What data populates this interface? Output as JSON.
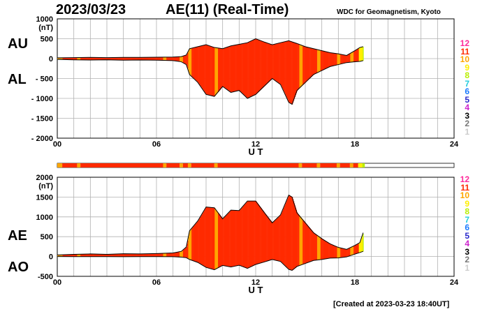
{
  "header": {
    "date": "2023/03/23",
    "title": "AE(11) (Real-Time)",
    "source": "WDC for Geomagnetism, Kyoto"
  },
  "footer": {
    "created": "[Created at 2023-03-23 18:40UT]"
  },
  "colors": {
    "fill_main": "#ff2a00",
    "fill_alt": "#ffa500",
    "fill_recent": "#ffe000",
    "fill_latest": "#1a7a1a",
    "grid": "#b0b0b0"
  },
  "legend": {
    "items": [
      {
        "label": "12",
        "color": "#ff2a9a"
      },
      {
        "label": "11",
        "color": "#ff2a00"
      },
      {
        "label": "10",
        "color": "#ffa500"
      },
      {
        "label": "9",
        "color": "#ffee00"
      },
      {
        "label": "8",
        "color": "#b8ee00"
      },
      {
        "label": "7",
        "color": "#22ccdd"
      },
      {
        "label": "6",
        "color": "#1a7aff"
      },
      {
        "label": "5",
        "color": "#2a2acc"
      },
      {
        "label": "4",
        "color": "#cc22cc"
      },
      {
        "label": "3",
        "color": "#000000"
      },
      {
        "label": "2",
        "color": "#777777"
      },
      {
        "label": "1",
        "color": "#cccccc"
      }
    ]
  },
  "chart_data": [
    {
      "type": "area",
      "panel": "AU/AL",
      "side_labels": [
        "AU",
        "AL"
      ],
      "ylabel": "(nT)",
      "xlabel": "U T",
      "ylim": [
        -2000,
        1000
      ],
      "yticks": [
        "1000",
        "500",
        "0",
        "- 500",
        "- 1000",
        "- 1500",
        "- 2000"
      ],
      "ytick_values": [
        1000,
        500,
        0,
        -500,
        -1000,
        -1500,
        -2000
      ],
      "xlim": [
        0,
        24
      ],
      "xticks": [
        "00",
        "06",
        "12",
        "18",
        "24"
      ],
      "xtick_values": [
        0,
        6,
        12,
        18,
        24
      ],
      "grid": true,
      "series": [
        {
          "name": "AU",
          "x": [
            0,
            1,
            2,
            3,
            4,
            5,
            6,
            7,
            7.5,
            7.8,
            8,
            8.5,
            9,
            9.5,
            10,
            10.5,
            11,
            11.5,
            12,
            12.5,
            13,
            13.5,
            14,
            14.5,
            15,
            15.5,
            16,
            16.5,
            17,
            17.5,
            18,
            18.3,
            18.5
          ],
          "values": [
            20,
            25,
            30,
            25,
            30,
            30,
            35,
            40,
            50,
            90,
            250,
            300,
            350,
            280,
            250,
            320,
            360,
            400,
            500,
            420,
            350,
            400,
            450,
            380,
            300,
            250,
            200,
            150,
            120,
            80,
            200,
            280,
            300
          ]
        },
        {
          "name": "AL",
          "x": [
            0,
            1,
            2,
            3,
            4,
            5,
            6,
            7,
            7.5,
            7.8,
            8,
            8.5,
            9,
            9.5,
            10,
            10.5,
            11,
            11.5,
            12,
            12.5,
            13,
            13.5,
            14,
            14.2,
            14.5,
            15,
            15.5,
            16,
            16.5,
            17,
            17.5,
            18,
            18.3,
            18.5
          ],
          "values": [
            -20,
            -30,
            -35,
            -30,
            -40,
            -35,
            -40,
            -50,
            -80,
            -150,
            -400,
            -600,
            -900,
            -950,
            -700,
            -850,
            -800,
            -1000,
            -900,
            -700,
            -500,
            -650,
            -1100,
            -1150,
            -800,
            -600,
            -400,
            -300,
            -200,
            -150,
            -100,
            -80,
            -70,
            -50
          ]
        }
      ]
    },
    {
      "type": "area",
      "panel": "AE/AO",
      "side_labels": [
        "AE",
        "AO"
      ],
      "ylabel": "(nT)",
      "xlabel": "U T",
      "ylim": [
        -500,
        2000
      ],
      "yticks": [
        "2000",
        "1500",
        "1000",
        "500",
        "0",
        "-500"
      ],
      "ytick_values": [
        2000,
        1500,
        1000,
        500,
        0,
        -500
      ],
      "xlim": [
        0,
        24
      ],
      "xticks": [
        "00",
        "06",
        "12",
        "18",
        "24"
      ],
      "xtick_values": [
        0,
        6,
        12,
        18,
        24
      ],
      "grid": true,
      "series": [
        {
          "name": "AE",
          "x": [
            0,
            1,
            2,
            3,
            4,
            5,
            6,
            7,
            7.5,
            7.8,
            8,
            8.5,
            9,
            9.5,
            10,
            10.5,
            11,
            11.5,
            12,
            12.5,
            13,
            13.5,
            14,
            14.2,
            14.5,
            15,
            15.5,
            16,
            16.5,
            17,
            17.5,
            18,
            18.3,
            18.5
          ],
          "values": [
            40,
            55,
            65,
            55,
            70,
            65,
            75,
            90,
            130,
            240,
            650,
            900,
            1250,
            1230,
            950,
            1170,
            1160,
            1400,
            1400,
            1120,
            850,
            1050,
            1550,
            1500,
            1100,
            850,
            600,
            450,
            320,
            230,
            180,
            280,
            350,
            600
          ]
        },
        {
          "name": "AO",
          "x": [
            0,
            1,
            2,
            3,
            4,
            5,
            6,
            7,
            7.5,
            7.8,
            8,
            8.5,
            9,
            9.5,
            10,
            10.5,
            11,
            11.5,
            12,
            12.5,
            13,
            13.5,
            14,
            14.2,
            14.5,
            15,
            15.5,
            16,
            16.5,
            17,
            17.5,
            18,
            18.3,
            18.5
          ],
          "values": [
            0,
            -3,
            -3,
            -3,
            -5,
            -3,
            -3,
            -5,
            -15,
            -30,
            -75,
            -150,
            -275,
            -335,
            -225,
            -265,
            -220,
            -300,
            -200,
            -140,
            -75,
            -125,
            -325,
            -350,
            -250,
            -175,
            -100,
            -75,
            -40,
            -35,
            -10,
            60,
            100,
            130
          ]
        }
      ]
    }
  ],
  "activity_bar": {
    "segments": [
      {
        "start": 0,
        "end": 0.3,
        "level": "10"
      },
      {
        "start": 0.3,
        "end": 1.2,
        "level": "11"
      },
      {
        "start": 1.2,
        "end": 1.4,
        "level": "10"
      },
      {
        "start": 1.4,
        "end": 6.4,
        "level": "11"
      },
      {
        "start": 6.4,
        "end": 6.6,
        "level": "10"
      },
      {
        "start": 6.6,
        "end": 7.4,
        "level": "11"
      },
      {
        "start": 7.4,
        "end": 7.6,
        "level": "10"
      },
      {
        "start": 7.6,
        "end": 7.9,
        "level": "11"
      },
      {
        "start": 7.9,
        "end": 8.1,
        "level": "10"
      },
      {
        "start": 8.1,
        "end": 9.5,
        "level": "11"
      },
      {
        "start": 9.5,
        "end": 9.7,
        "level": "10"
      },
      {
        "start": 9.7,
        "end": 14.6,
        "level": "11"
      },
      {
        "start": 14.6,
        "end": 14.8,
        "level": "10"
      },
      {
        "start": 14.8,
        "end": 15.7,
        "level": "11"
      },
      {
        "start": 15.7,
        "end": 15.9,
        "level": "10"
      },
      {
        "start": 15.9,
        "end": 16.9,
        "level": "11"
      },
      {
        "start": 16.9,
        "end": 17.1,
        "level": "10"
      },
      {
        "start": 17.1,
        "end": 17.7,
        "level": "11"
      },
      {
        "start": 17.7,
        "end": 17.9,
        "level": "10"
      },
      {
        "start": 17.9,
        "end": 18.2,
        "level": "11"
      },
      {
        "start": 18.2,
        "end": 18.45,
        "level": "9"
      },
      {
        "start": 18.45,
        "end": 18.6,
        "level": "8"
      }
    ]
  }
}
